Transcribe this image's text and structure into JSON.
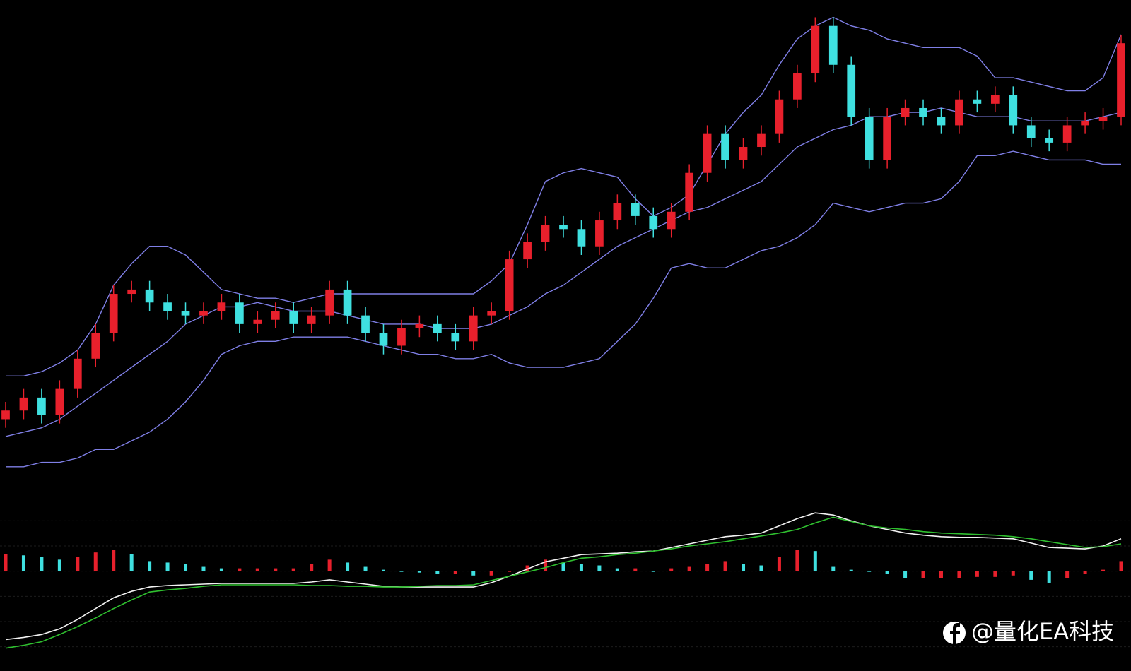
{
  "chart_data": [
    {
      "type": "candlestick",
      "open": [
        13,
        15,
        18,
        14,
        20,
        27,
        33,
        42,
        43,
        40,
        38,
        37,
        38,
        40,
        35,
        36,
        38,
        35,
        37,
        43,
        37,
        33,
        30,
        34,
        35,
        33,
        31,
        37,
        38,
        50,
        54,
        58,
        57,
        53,
        59,
        63,
        60,
        57,
        61,
        70,
        79,
        73,
        76,
        79,
        87,
        93,
        104,
        95,
        83,
        73,
        83,
        85,
        83,
        81,
        87,
        86,
        88,
        81,
        78,
        77,
        81,
        82,
        83
      ],
      "high": [
        17,
        20,
        20,
        22,
        29,
        35,
        44,
        45,
        45,
        42,
        40,
        40,
        42,
        42,
        38,
        40,
        40,
        39,
        45,
        45,
        39,
        35,
        36,
        37,
        37,
        35,
        39,
        40,
        52,
        56,
        60,
        60,
        59,
        61,
        65,
        65,
        62,
        63,
        72,
        81,
        81,
        78,
        81,
        89,
        95,
        106,
        106,
        97,
        85,
        85,
        87,
        87,
        85,
        89,
        89,
        90,
        90,
        83,
        80,
        83,
        84,
        85,
        102
      ],
      "low": [
        11,
        13,
        12,
        12,
        18,
        25,
        31,
        40,
        38,
        36,
        35,
        35,
        36,
        33,
        33,
        34,
        33,
        33,
        35,
        35,
        31,
        28,
        28,
        32,
        31,
        29,
        29,
        35,
        36,
        48,
        52,
        55,
        51,
        51,
        57,
        58,
        55,
        55,
        59,
        68,
        71,
        71,
        74,
        77,
        85,
        91,
        93,
        81,
        71,
        71,
        81,
        81,
        79,
        79,
        84,
        84,
        79,
        76,
        75,
        75,
        79,
        80,
        81
      ],
      "close": [
        15,
        18,
        14,
        20,
        27,
        33,
        42,
        43,
        40,
        38,
        37,
        38,
        40,
        35,
        36,
        38,
        35,
        37,
        43,
        37,
        33,
        30,
        34,
        35,
        33,
        31,
        37,
        38,
        50,
        54,
        58,
        57,
        53,
        59,
        63,
        60,
        57,
        61,
        70,
        79,
        73,
        76,
        79,
        87,
        93,
        104,
        95,
        83,
        73,
        83,
        85,
        83,
        81,
        87,
        86,
        88,
        81,
        78,
        77,
        81,
        82,
        83,
        100
      ],
      "up_color": "#e8202c",
      "down_color": "#3fe0e0",
      "ylim": [
        0,
        110
      ],
      "series": [
        {
          "color": "#7f7fe6",
          "values": [
            23,
            23,
            24,
            26,
            29,
            35,
            44,
            49,
            53,
            53,
            51,
            47,
            43,
            42,
            41,
            41,
            40,
            41,
            42,
            42,
            42,
            42,
            42,
            42,
            42,
            42,
            42,
            45,
            49,
            58,
            68,
            70,
            71,
            70,
            69,
            64,
            60,
            62,
            65,
            72,
            79,
            84,
            88,
            95,
            101,
            104,
            106,
            104,
            103,
            101,
            100,
            99,
            99,
            99,
            97,
            92,
            92,
            91,
            90,
            89,
            89,
            92,
            102
          ]
        },
        {
          "color": "#7f7fe6",
          "values": [
            9,
            10,
            11,
            13,
            16,
            19,
            22,
            25,
            28,
            31,
            35,
            37,
            39,
            39,
            40,
            39,
            38,
            38,
            38,
            37,
            36,
            35,
            35,
            35,
            34,
            34,
            34,
            35,
            37,
            39,
            42,
            44,
            47,
            50,
            53,
            55,
            57,
            59,
            61,
            62,
            64,
            66,
            68,
            72,
            76,
            78,
            80,
            81,
            83,
            83,
            84,
            84,
            85,
            84,
            83,
            83,
            83,
            82,
            82,
            82,
            82,
            83,
            84
          ]
        },
        {
          "color": "#7f7fe6",
          "values": [
            2,
            2,
            3,
            3,
            4,
            6,
            6,
            8,
            10,
            13,
            17,
            22,
            28,
            30,
            31,
            31,
            32,
            32,
            32,
            32,
            31,
            30,
            29,
            28,
            28,
            27,
            27,
            28,
            26,
            25,
            25,
            25,
            26,
            27,
            31,
            35,
            41,
            48,
            49,
            48,
            48,
            50,
            52,
            53,
            55,
            58,
            63,
            62,
            61,
            62,
            63,
            63,
            64,
            68,
            74,
            74,
            75,
            74,
            73,
            73,
            73,
            72,
            72
          ]
        }
      ]
    },
    {
      "type": "macd",
      "ylim": [
        -12.5,
        9
      ],
      "yticks": [
        -10.5,
        -7,
        -3.5,
        0,
        3.5,
        7
      ],
      "grid": true,
      "series": [
        {
          "color": "#f2f2f2",
          "values": [
            -9.5,
            -9.2,
            -8.8,
            -8,
            -6.7,
            -5.2,
            -3.7,
            -2.8,
            -2.2,
            -2,
            -1.9,
            -1.8,
            -1.7,
            -1.7,
            -1.7,
            -1.7,
            -1.7,
            -1.5,
            -1.2,
            -1.5,
            -1.8,
            -2.1,
            -2.2,
            -2.2,
            -2.2,
            -2.2,
            -2.2,
            -1.6,
            -0.7,
            0.3,
            1.3,
            1.8,
            2.3,
            2.4,
            2.5,
            2.7,
            2.8,
            3.3,
            3.8,
            4.3,
            4.8,
            5,
            5.3,
            6.3,
            7.3,
            8.1,
            7.8,
            7,
            6.3,
            5.8,
            5.3,
            5,
            4.8,
            4.7,
            4.7,
            4.6,
            4.5,
            3.9,
            3.3,
            3.2,
            3.1,
            3.5,
            4.5
          ]
        },
        {
          "color": "#2fbf2f",
          "values": [
            -10.7,
            -10.3,
            -9.8,
            -8.8,
            -7.7,
            -6.5,
            -5.2,
            -4,
            -2.9,
            -2.6,
            -2.4,
            -2.1,
            -1.9,
            -1.9,
            -1.9,
            -1.9,
            -1.9,
            -2,
            -2,
            -2.1,
            -2.1,
            -2.2,
            -2.2,
            -2.1,
            -2,
            -2,
            -1.9,
            -1.3,
            -0.7,
            -0.1,
            0.5,
            1.2,
            1.8,
            2,
            2.3,
            2.5,
            2.8,
            3.1,
            3.5,
            3.8,
            4.1,
            4.5,
            4.9,
            5.3,
            5.8,
            6.7,
            7.5,
            6.9,
            6.3,
            6,
            5.8,
            5.5,
            5.3,
            5.2,
            5.1,
            5,
            4.8,
            4.5,
            4.1,
            3.7,
            3.3,
            3.4,
            3.8
          ]
        }
      ],
      "bars": {
        "rising_color": "#e8202c",
        "falling_color": "#3fe0e0",
        "values": [
          2.4,
          2.2,
          2,
          1.6,
          2,
          2.6,
          3,
          2.4,
          1.4,
          1.2,
          1,
          0.6,
          0.4,
          0.4,
          0.4,
          0.4,
          0.4,
          1,
          1.6,
          1.2,
          0.6,
          0.2,
          0,
          -0.2,
          -0.4,
          -0.4,
          -0.6,
          -0.6,
          0,
          0.8,
          1.6,
          1.2,
          1,
          0.8,
          0.4,
          0.4,
          0,
          0.4,
          0.6,
          1,
          1.4,
          1,
          0.8,
          2,
          3,
          2.8,
          0.6,
          0.2,
          0,
          -0.4,
          -1,
          -1,
          -1,
          -1,
          -0.8,
          -0.8,
          -0.6,
          -1.2,
          -1.6,
          -1,
          -0.4,
          0.2,
          1.4
        ]
      }
    }
  ],
  "watermark": "@量化EA科技"
}
